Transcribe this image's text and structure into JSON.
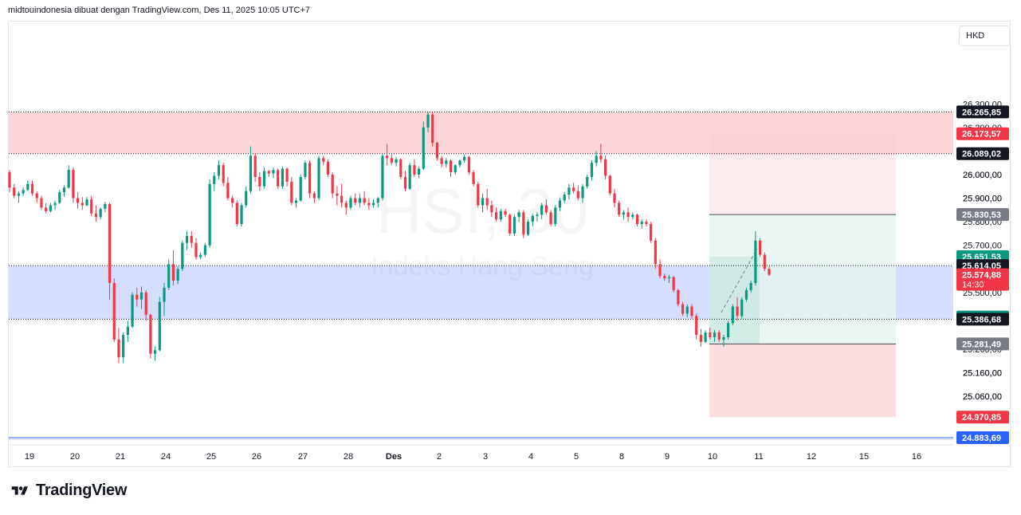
{
  "header": {
    "attribution": "midtouindonesia dibuat dengan TradingView.com, Des 11, 2025 10:05 UTC+7"
  },
  "currency_button": "HKD",
  "watermark": {
    "symbol": "HSI, 30",
    "name": "Indeks Hang Seng"
  },
  "footer": {
    "brand": "TradingView"
  },
  "colors": {
    "up": "#089981",
    "down": "#f23645",
    "supply_zone": "#fbd5d8",
    "demand_zone": "#d6defd",
    "target_zone": "#e6f4f0",
    "stop_zone": "#fcdadd",
    "stop_zone_light": "#fde9ea",
    "entry_zone": "#b7e0d6"
  },
  "chart_data": {
    "type": "candlestick",
    "symbol": "HSI",
    "interval": "30",
    "currency": "HKD",
    "x_tick_labels": [
      "19",
      "20",
      "21",
      "24",
      "25",
      "26",
      "27",
      "28",
      "Des",
      "2",
      "3",
      "4",
      "5",
      "8",
      "9",
      "10",
      "11",
      "12",
      "15",
      "16"
    ],
    "y_tick_labels": [
      26300,
      26200,
      26000,
      25900,
      25800,
      25700,
      25500,
      25260,
      25160,
      25060
    ],
    "y_range": [
      24883.69,
      26300
    ],
    "price_labels": [
      {
        "text": "26.265,85",
        "value": 26265.85,
        "style": "black"
      },
      {
        "text": "26.173,57",
        "value": 26173.57,
        "style": "red"
      },
      {
        "text": "26.089,02",
        "value": 26089.02,
        "style": "black"
      },
      {
        "text": "26.000,00",
        "value": 26000,
        "style": "axis"
      },
      {
        "text": "25.900,00",
        "value": 25900,
        "style": "axis"
      },
      {
        "text": "25.830,53",
        "value": 25830.53,
        "style": "gray"
      },
      {
        "text": "25.651,53",
        "value": 25651.53,
        "style": "green"
      },
      {
        "text": "25.614,05",
        "value": 25614.05,
        "style": "black"
      },
      {
        "text": "25.574,88",
        "value": 25574.88,
        "style": "red",
        "sub": "14:30"
      },
      {
        "text": "25.395,66",
        "value": 25395.66,
        "style": "green"
      },
      {
        "text": "25.386,68",
        "value": 25386.68,
        "style": "black"
      },
      {
        "text": "25.281,49",
        "value": 25281.49,
        "style": "gray"
      },
      {
        "text": "25.160,00",
        "value": 25160,
        "style": "axis"
      },
      {
        "text": "25.060,00",
        "value": 25060,
        "style": "axis"
      },
      {
        "text": "24.970,85",
        "value": 24970.85,
        "style": "red"
      },
      {
        "text": "24.883,69",
        "value": 24883.69,
        "style": "blue"
      }
    ],
    "zones": [
      {
        "name": "supply-zone",
        "top": 26265.85,
        "bottom": 26089.02
      },
      {
        "name": "demand-zone",
        "top": 25614.05,
        "bottom": 25386.68
      }
    ],
    "position_tool": {
      "entry": 25651.53,
      "target": 25830.53,
      "stop": 25281.49,
      "secondary_target": 26173.57,
      "secondary_stop": 24970.85,
      "entry_fill_top": 25651.53,
      "entry_fill_bottom": 25281.49
    },
    "horizontal_line": 24883.69,
    "last_price": 25574.88,
    "candles": [
      [
        26010,
        26020,
        25925,
        25945
      ],
      [
        25945,
        25960,
        25900,
        25910
      ],
      [
        25910,
        25930,
        25880,
        25920
      ],
      [
        25920,
        25945,
        25910,
        25935
      ],
      [
        25935,
        25975,
        25930,
        25960
      ],
      [
        25960,
        25975,
        25910,
        25920
      ],
      [
        25920,
        25930,
        25880,
        25900
      ],
      [
        25900,
        25910,
        25850,
        25860
      ],
      [
        25860,
        25880,
        25835,
        25845
      ],
      [
        25845,
        25880,
        25840,
        25870
      ],
      [
        25870,
        25890,
        25850,
        25880
      ],
      [
        25880,
        25935,
        25875,
        25925
      ],
      [
        25925,
        25955,
        25905,
        25945
      ],
      [
        25945,
        26040,
        25940,
        26020
      ],
      [
        26020,
        26030,
        25880,
        25900
      ],
      [
        25900,
        25925,
        25855,
        25880
      ],
      [
        25880,
        25905,
        25850,
        25870
      ],
      [
        25870,
        25905,
        25865,
        25895
      ],
      [
        25895,
        25910,
        25825,
        25835
      ],
      [
        25835,
        25870,
        25800,
        25820
      ],
      [
        25820,
        25860,
        25810,
        25855
      ],
      [
        25855,
        25885,
        25840,
        25875
      ],
      [
        25875,
        25880,
        25470,
        25540
      ],
      [
        25540,
        25560,
        25290,
        25300
      ],
      [
        25300,
        25350,
        25200,
        25225
      ],
      [
        25225,
        25330,
        25200,
        25320
      ],
      [
        25320,
        25380,
        25290,
        25355
      ],
      [
        25355,
        25500,
        25350,
        25490
      ],
      [
        25490,
        25520,
        25440,
        25470
      ],
      [
        25470,
        25525,
        25430,
        25500
      ],
      [
        25500,
        25510,
        25380,
        25405
      ],
      [
        25405,
        25410,
        25220,
        25240
      ],
      [
        25240,
        25270,
        25210,
        25255
      ],
      [
        25255,
        25480,
        25250,
        25460
      ],
      [
        25460,
        25540,
        25400,
        25520
      ],
      [
        25520,
        25640,
        25510,
        25620
      ],
      [
        25620,
        25680,
        25530,
        25550
      ],
      [
        25550,
        25610,
        25535,
        25600
      ],
      [
        25600,
        25720,
        25590,
        25710
      ],
      [
        25710,
        25760,
        25680,
        25740
      ],
      [
        25740,
        25760,
        25690,
        25710
      ],
      [
        25710,
        25730,
        25640,
        25650
      ],
      [
        25650,
        25670,
        25640,
        25660
      ],
      [
        25660,
        25710,
        25650,
        25700
      ],
      [
        25700,
        25980,
        25690,
        25960
      ],
      [
        25960,
        26010,
        25930,
        25995
      ],
      [
        25995,
        26060,
        25980,
        26040
      ],
      [
        26040,
        26050,
        25950,
        25965
      ],
      [
        25965,
        25990,
        25890,
        25900
      ],
      [
        25900,
        25910,
        25860,
        25880
      ],
      [
        25880,
        25890,
        25780,
        25790
      ],
      [
        25790,
        25880,
        25780,
        25870
      ],
      [
        25870,
        25950,
        25860,
        25930
      ],
      [
        25930,
        26120,
        25920,
        26080
      ],
      [
        26080,
        26090,
        25970,
        25990
      ],
      [
        25990,
        26010,
        25930,
        25950
      ],
      [
        25950,
        26030,
        25940,
        26015
      ],
      [
        26015,
        26020,
        25990,
        26005
      ],
      [
        26005,
        26030,
        25985,
        26020
      ],
      [
        26020,
        26025,
        25940,
        25950
      ],
      [
        25950,
        26035,
        25940,
        26025
      ],
      [
        26025,
        26030,
        25950,
        25970
      ],
      [
        25970,
        25990,
        25870,
        25880
      ],
      [
        25880,
        25900,
        25860,
        25890
      ],
      [
        25890,
        26000,
        25885,
        25990
      ],
      [
        25990,
        26060,
        25980,
        26050
      ],
      [
        26050,
        26060,
        25900,
        25920
      ],
      [
        25920,
        25930,
        25880,
        25900
      ],
      [
        25900,
        26080,
        25890,
        26070
      ],
      [
        26070,
        26080,
        26040,
        26055
      ],
      [
        26055,
        26065,
        25990,
        26000
      ],
      [
        26000,
        26010,
        25900,
        25920
      ],
      [
        25920,
        25950,
        25870,
        25910
      ],
      [
        25910,
        25960,
        25860,
        25880
      ],
      [
        25880,
        25890,
        25830,
        25860
      ],
      [
        25860,
        25910,
        25850,
        25900
      ],
      [
        25900,
        25920,
        25870,
        25880
      ],
      [
        25880,
        25920,
        25860,
        25900
      ],
      [
        25900,
        25930,
        25870,
        25880
      ],
      [
        25880,
        25900,
        25850,
        25870
      ],
      [
        25870,
        25895,
        25860,
        25880
      ],
      [
        25880,
        25905,
        25860,
        25900
      ],
      [
        25900,
        26090,
        25890,
        26080
      ],
      [
        26080,
        26130,
        26040,
        26070
      ],
      [
        26070,
        26085,
        26040,
        26050
      ],
      [
        26050,
        26075,
        26035,
        26065
      ],
      [
        26065,
        26070,
        25980,
        25990
      ],
      [
        25990,
        26015,
        25930,
        25940
      ],
      [
        25940,
        26050,
        25935,
        26040
      ],
      [
        26040,
        26065,
        25990,
        26000
      ],
      [
        26000,
        26035,
        25985,
        26025
      ],
      [
        26025,
        26225,
        26020,
        26200
      ],
      [
        26200,
        26265,
        26180,
        26255
      ],
      [
        26255,
        26265,
        26120,
        26135
      ],
      [
        26135,
        26140,
        26060,
        26070
      ],
      [
        26070,
        26080,
        26030,
        26045
      ],
      [
        26045,
        26070,
        26030,
        26060
      ],
      [
        26060,
        26065,
        25990,
        26010
      ],
      [
        26010,
        26045,
        26000,
        26040
      ],
      [
        26040,
        26065,
        26030,
        26060
      ],
      [
        26060,
        26085,
        26050,
        26075
      ],
      [
        26075,
        26080,
        26000,
        26010
      ],
      [
        26010,
        26020,
        25950,
        25960
      ],
      [
        25960,
        25970,
        25860,
        25870
      ],
      [
        25870,
        25920,
        25840,
        25900
      ],
      [
        25900,
        25940,
        25850,
        25870
      ],
      [
        25870,
        25890,
        25820,
        25840
      ],
      [
        25840,
        25860,
        25800,
        25810
      ],
      [
        25810,
        25855,
        25800,
        25845
      ],
      [
        25845,
        25855,
        25820,
        25830
      ],
      [
        25830,
        25835,
        25740,
        25750
      ],
      [
        25750,
        25830,
        25740,
        25820
      ],
      [
        25820,
        25850,
        25800,
        25840
      ],
      [
        25840,
        25850,
        25730,
        25745
      ],
      [
        25745,
        25810,
        25740,
        25800
      ],
      [
        25800,
        25835,
        25780,
        25825
      ],
      [
        25825,
        25840,
        25800,
        25830
      ],
      [
        25830,
        25880,
        25810,
        25870
      ],
      [
        25870,
        25895,
        25830,
        25840
      ],
      [
        25840,
        25850,
        25780,
        25790
      ],
      [
        25790,
        25870,
        25780,
        25860
      ],
      [
        25860,
        25900,
        25845,
        25890
      ],
      [
        25890,
        25925,
        25880,
        25915
      ],
      [
        25915,
        25960,
        25895,
        25945
      ],
      [
        25945,
        25965,
        25920,
        25930
      ],
      [
        25930,
        25955,
        25890,
        25900
      ],
      [
        25900,
        25960,
        25880,
        25950
      ],
      [
        25950,
        26000,
        25940,
        25990
      ],
      [
        25990,
        26060,
        25975,
        26050
      ],
      [
        26050,
        26100,
        26035,
        26080
      ],
      [
        26080,
        26130,
        26050,
        26065
      ],
      [
        26065,
        26080,
        25980,
        25995
      ],
      [
        25995,
        26000,
        25910,
        25920
      ],
      [
        25920,
        25940,
        25860,
        25880
      ],
      [
        25880,
        25890,
        25820,
        25830
      ],
      [
        25830,
        25850,
        25810,
        25840
      ],
      [
        25840,
        25860,
        25800,
        25820
      ],
      [
        25820,
        25840,
        25810,
        25830
      ],
      [
        25830,
        25835,
        25780,
        25790
      ],
      [
        25790,
        25810,
        25770,
        25800
      ],
      [
        25800,
        25810,
        25780,
        25790
      ],
      [
        25790,
        25800,
        25710,
        25720
      ],
      [
        25720,
        25730,
        25600,
        25620
      ],
      [
        25620,
        25640,
        25560,
        25570
      ],
      [
        25570,
        25580,
        25550,
        25560
      ],
      [
        25560,
        25575,
        25540,
        25565
      ],
      [
        25565,
        25570,
        25500,
        25510
      ],
      [
        25510,
        25515,
        25440,
        25450
      ],
      [
        25450,
        25460,
        25400,
        25410
      ],
      [
        25410,
        25450,
        25395,
        25440
      ],
      [
        25440,
        25450,
        25390,
        25400
      ],
      [
        25400,
        25410,
        25300,
        25320
      ],
      [
        25320,
        25345,
        25270,
        25290
      ],
      [
        25290,
        25340,
        25285,
        25330
      ],
      [
        25330,
        25350,
        25300,
        25310
      ],
      [
        25310,
        25340,
        25290,
        25330
      ],
      [
        25330,
        25340,
        25290,
        25300
      ],
      [
        25300,
        25320,
        25270,
        25310
      ],
      [
        25310,
        25380,
        25300,
        25370
      ],
      [
        25370,
        25450,
        25360,
        25440
      ],
      [
        25440,
        25480,
        25380,
        25400
      ],
      [
        25400,
        25480,
        25390,
        25470
      ],
      [
        25470,
        25520,
        25460,
        25510
      ],
      [
        25510,
        25550,
        25500,
        25540
      ],
      [
        25540,
        25760,
        25530,
        25720
      ],
      [
        25720,
        25730,
        25650,
        25660
      ],
      [
        25660,
        25670,
        25590,
        25600
      ],
      [
        25600,
        25610,
        25570,
        25575
      ]
    ]
  }
}
